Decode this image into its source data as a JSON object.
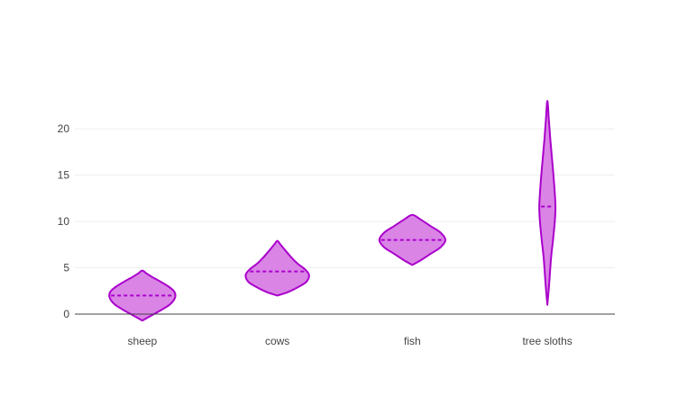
{
  "chart_data": {
    "type": "violin",
    "categories": [
      "sheep",
      "cows",
      "fish",
      "tree sloths"
    ],
    "yticks": [
      0,
      5,
      10,
      15,
      20
    ],
    "ylim": [
      -1,
      24
    ],
    "grid": true,
    "series": [
      {
        "category": "sheep",
        "min": -0.7,
        "max": 4.7,
        "mean": 2.0,
        "profile": [
          [
            -0.7,
            0.0
          ],
          [
            0.0,
            0.35
          ],
          [
            0.5,
            0.6
          ],
          [
            1.0,
            0.82
          ],
          [
            1.5,
            0.95
          ],
          [
            2.0,
            1.0
          ],
          [
            2.5,
            0.95
          ],
          [
            3.0,
            0.78
          ],
          [
            3.5,
            0.55
          ],
          [
            4.0,
            0.3
          ],
          [
            4.4,
            0.12
          ],
          [
            4.7,
            0.0
          ]
        ],
        "width_scale": 0.49,
        "color": "#aa00cc",
        "fill": "#da84e6"
      },
      {
        "category": "cows",
        "min": 2.0,
        "max": 7.9,
        "mean": 4.6,
        "profile": [
          [
            2.0,
            0.0
          ],
          [
            2.4,
            0.35
          ],
          [
            3.0,
            0.7
          ],
          [
            3.5,
            0.92
          ],
          [
            4.2,
            1.0
          ],
          [
            4.8,
            0.88
          ],
          [
            5.5,
            0.62
          ],
          [
            6.2,
            0.42
          ],
          [
            7.0,
            0.22
          ],
          [
            7.5,
            0.1
          ],
          [
            7.9,
            0.0
          ]
        ],
        "width_scale": 0.47,
        "color": "#aa00cc",
        "fill": "#da84e6"
      },
      {
        "category": "fish",
        "min": 5.3,
        "max": 10.7,
        "mean": 8.0,
        "profile": [
          [
            5.3,
            0.0
          ],
          [
            5.8,
            0.25
          ],
          [
            6.5,
            0.55
          ],
          [
            7.2,
            0.85
          ],
          [
            8.0,
            1.0
          ],
          [
            8.8,
            0.85
          ],
          [
            9.5,
            0.55
          ],
          [
            10.2,
            0.25
          ],
          [
            10.7,
            0.0
          ]
        ],
        "width_scale": 0.49,
        "color": "#aa00cc",
        "fill": "#da84e6"
      },
      {
        "category": "tree sloths",
        "min": 1.0,
        "max": 23.0,
        "mean": 11.6,
        "profile": [
          [
            1.0,
            0.0
          ],
          [
            3.0,
            0.2
          ],
          [
            6.0,
            0.45
          ],
          [
            8.0,
            0.7
          ],
          [
            10.0,
            0.92
          ],
          [
            11.5,
            1.0
          ],
          [
            13.0,
            0.92
          ],
          [
            15.0,
            0.75
          ],
          [
            17.0,
            0.55
          ],
          [
            19.0,
            0.35
          ],
          [
            21.0,
            0.18
          ],
          [
            23.0,
            0.0
          ]
        ],
        "width_scale": 0.12,
        "color": "#aa00cc",
        "fill": "#da84e6"
      }
    ]
  }
}
